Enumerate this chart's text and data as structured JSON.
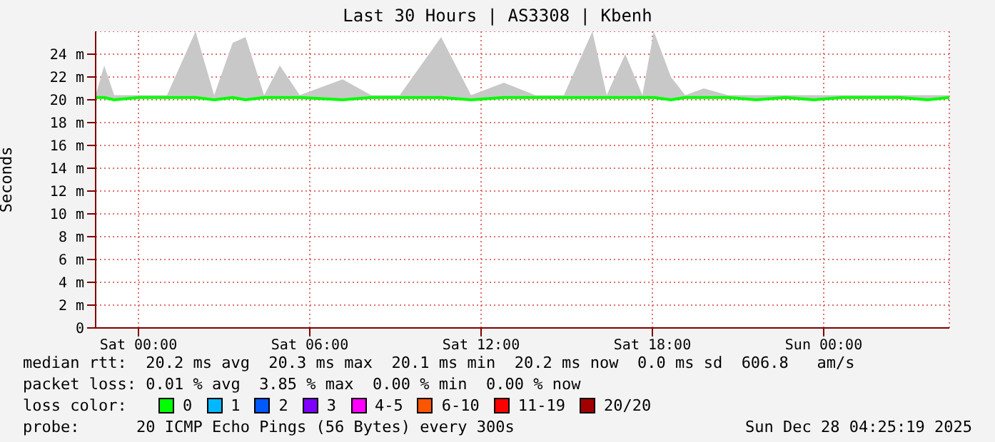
{
  "chart_data": {
    "type": "line",
    "title": "Last 30 Hours | AS3308 | Kbenh",
    "ylabel": "Seconds",
    "legend_title": "loss color:",
    "x": [
      "2025-12-26T22:30",
      "2025-12-26T22:48",
      "2025-12-26T23:09",
      "2025-12-27T00:00",
      "2025-12-27T01:00",
      "2025-12-27T02:00",
      "2025-12-27T02:39",
      "2025-12-27T03:18",
      "2025-12-27T03:45",
      "2025-12-27T04:24",
      "2025-12-27T04:57",
      "2025-12-27T05:39",
      "2025-12-27T07:09",
      "2025-12-27T08:09",
      "2025-12-27T09:09",
      "2025-12-27T10:36",
      "2025-12-27T11:39",
      "2025-12-27T12:48",
      "2025-12-27T13:54",
      "2025-12-27T14:54",
      "2025-12-27T15:54",
      "2025-12-27T16:24",
      "2025-12-27T17:03",
      "2025-12-27T17:39",
      "2025-12-27T18:03",
      "2025-12-27T18:39",
      "2025-12-27T19:09",
      "2025-12-27T19:48",
      "2025-12-27T20:39",
      "2025-12-27T21:39",
      "2025-12-27T22:39",
      "2025-12-27T23:39",
      "2025-12-28T00:39",
      "2025-12-28T01:39",
      "2025-12-28T02:39",
      "2025-12-28T03:39",
      "2025-12-28T04:24"
    ],
    "series": [
      {
        "name": "0",
        "color": "#00ff00",
        "values": [
          20.2,
          20.2,
          20.0,
          20.2,
          20.2,
          20.2,
          20.0,
          20.2,
          20.0,
          20.2,
          20.2,
          20.2,
          20.0,
          20.2,
          20.2,
          20.2,
          20.0,
          20.2,
          20.2,
          20.2,
          20.2,
          20.2,
          20.2,
          20.2,
          20.2,
          20.0,
          20.2,
          20.2,
          20.2,
          20.0,
          20.2,
          20.0,
          20.2,
          20.2,
          20.2,
          20.0,
          20.2
        ],
        "lower": [
          20.1,
          20.1,
          20.0,
          20.1,
          20.1,
          20.1,
          20.0,
          20.1,
          20.0,
          20.1,
          20.1,
          20.1,
          20.0,
          20.1,
          20.1,
          20.1,
          20.0,
          20.1,
          20.1,
          20.1,
          20.1,
          20.1,
          20.1,
          20.1,
          20.1,
          20.0,
          20.1,
          20.1,
          20.1,
          20.0,
          20.1,
          20.0,
          20.1,
          20.1,
          20.1,
          20.0,
          20.1
        ],
        "upper": [
          20.4,
          23,
          20.4,
          20.4,
          20.4,
          26,
          20.4,
          25,
          25.5,
          20.4,
          23,
          20.4,
          21.8,
          20.4,
          20.4,
          25.5,
          20.4,
          21.5,
          20.4,
          20.4,
          26,
          20.4,
          24,
          20.4,
          26,
          22,
          20.4,
          21,
          20.4,
          20.4,
          20.4,
          20.4,
          20.4,
          20.4,
          20.4,
          20.4,
          20.4
        ]
      },
      {
        "name": "1",
        "color": "#00b8ff",
        "values": [
          null,
          null,
          null,
          null,
          null,
          null,
          null,
          null,
          null,
          null,
          null,
          null,
          null,
          null,
          null,
          null,
          null,
          null,
          null,
          null,
          null,
          null,
          null,
          null,
          null,
          null,
          null,
          null,
          null,
          null,
          null,
          null,
          null,
          null,
          null,
          null,
          null
        ]
      },
      {
        "name": "2",
        "color": "#0059ff",
        "values": [
          null,
          null,
          null,
          null,
          null,
          null,
          null,
          null,
          null,
          null,
          null,
          null,
          null,
          null,
          null,
          null,
          null,
          null,
          null,
          null,
          null,
          null,
          null,
          null,
          null,
          null,
          null,
          null,
          null,
          null,
          null,
          null,
          null,
          null,
          null,
          null,
          null
        ]
      },
      {
        "name": "3",
        "color": "#7e00ff",
        "values": [
          null,
          null,
          null,
          null,
          null,
          null,
          null,
          null,
          null,
          null,
          null,
          null,
          null,
          null,
          null,
          null,
          null,
          null,
          null,
          null,
          null,
          null,
          null,
          null,
          null,
          null,
          null,
          null,
          null,
          null,
          null,
          null,
          null,
          null,
          null,
          null,
          null
        ]
      },
      {
        "name": "4-5",
        "color": "#ff00ff",
        "values": [
          null,
          null,
          null,
          null,
          null,
          null,
          null,
          null,
          null,
          null,
          null,
          null,
          null,
          null,
          null,
          null,
          null,
          null,
          null,
          null,
          null,
          null,
          null,
          null,
          null,
          null,
          null,
          null,
          null,
          null,
          null,
          null,
          null,
          null,
          null,
          null,
          null
        ]
      },
      {
        "name": "6-10",
        "color": "#ff5500",
        "values": [
          null,
          null,
          null,
          null,
          null,
          null,
          null,
          null,
          null,
          null,
          null,
          null,
          null,
          null,
          null,
          null,
          null,
          null,
          null,
          null,
          null,
          null,
          null,
          null,
          null,
          null,
          null,
          null,
          null,
          null,
          null,
          null,
          null,
          null,
          null,
          null,
          null
        ]
      },
      {
        "name": "11-19",
        "color": "#ff0000",
        "values": [
          null,
          null,
          null,
          null,
          null,
          null,
          null,
          null,
          null,
          null,
          null,
          null,
          null,
          null,
          null,
          null,
          null,
          null,
          null,
          null,
          null,
          null,
          null,
          null,
          null,
          null,
          null,
          null,
          null,
          null,
          null,
          null,
          null,
          null,
          null,
          null,
          null
        ]
      },
      {
        "name": "20/20",
        "color": "#a10000",
        "values": [
          null,
          null,
          null,
          null,
          null,
          null,
          null,
          null,
          null,
          null,
          null,
          null,
          null,
          null,
          null,
          null,
          null,
          null,
          null,
          null,
          null,
          null,
          null,
          null,
          null,
          null,
          null,
          null,
          null,
          null,
          null,
          null,
          null,
          null,
          null,
          null,
          null
        ]
      }
    ],
    "xlim": [
      "2025-12-26T22:30",
      "2025-12-28T04:24"
    ],
    "xticks": [
      {
        "value": "2025-12-27T00:00",
        "label": "Sat 00:00"
      },
      {
        "value": "2025-12-27T06:00",
        "label": "Sat 06:00"
      },
      {
        "value": "2025-12-27T12:00",
        "label": "Sat 12:00"
      },
      {
        "value": "2025-12-27T18:00",
        "label": "Sat 18:00"
      },
      {
        "value": "2025-12-28T00:00",
        "label": "Sun 00:00"
      }
    ],
    "ylim": [
      0,
      26
    ],
    "yticks": [
      0,
      {
        "value": 2,
        "label": "2 m"
      },
      {
        "value": 4,
        "label": "4 m"
      },
      {
        "value": 6,
        "label": "6 m"
      },
      {
        "value": 8,
        "label": "8 m"
      },
      {
        "value": 10,
        "label": "10 m"
      },
      {
        "value": 12,
        "label": "12 m"
      },
      {
        "value": 14,
        "label": "14 m"
      },
      {
        "value": 16,
        "label": "16 m"
      },
      {
        "value": 18,
        "label": "18 m"
      },
      {
        "value": 20,
        "label": "20 m"
      },
      {
        "value": 22,
        "label": "22 m"
      },
      {
        "value": 24,
        "label": "24 m"
      }
    ],
    "grid": true,
    "legend": "bottom",
    "marker": "none",
    "line_style": "solid",
    "annotations": [
      "median rtt:  20.2 ms avg  20.3 ms max  20.1 ms min  20.2 ms now  0.0 ms sd  606.8   am/s",
      "packet loss: 0.01 % avg  3.85 % max  0.00 % min  0.00 % now",
      "probe:      20 ICMP Echo Pings (56 Bytes) every 300s",
      "Sun Dec 28 04:25:19 2025"
    ]
  }
}
